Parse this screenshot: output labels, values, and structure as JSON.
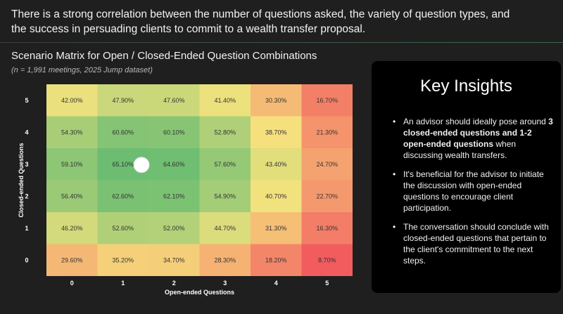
{
  "headline": "There is a strong correlation between the number of questions asked, the variety of question types, and the success in persuading clients to commit to a wealth transfer proposal.",
  "chart_title": "Scenario Matrix for Open / Closed-Ended Question Combinations",
  "chart_subtitle": "(n = 1,991 meetings, 2025 Jump dataset)",
  "chart_data": {
    "type": "heatmap",
    "title": "Scenario Matrix for Open / Closed-Ended Question Combinations",
    "xlabel": "Open-ended Questions",
    "ylabel": "Closed-ended Questions",
    "x_categories": [
      "0",
      "1",
      "2",
      "3",
      "4",
      "5"
    ],
    "y_categories": [
      "5",
      "4",
      "3",
      "2",
      "1",
      "0"
    ],
    "values": [
      [
        42.0,
        47.9,
        47.6,
        41.4,
        30.3,
        16.7
      ],
      [
        54.3,
        60.6,
        60.1,
        52.8,
        38.7,
        21.3
      ],
      [
        59.1,
        65.1,
        64.6,
        57.6,
        43.4,
        24.7
      ],
      [
        56.4,
        62.6,
        62.1,
        54.9,
        40.7,
        22.7
      ],
      [
        46.2,
        52.6,
        52.0,
        44.7,
        31.3,
        16.3
      ],
      [
        29.6,
        35.2,
        34.7,
        28.3,
        18.2,
        8.7
      ]
    ],
    "labels": [
      [
        "42.00%",
        "47.90%",
        "47.60%",
        "41.40%",
        "30.30%",
        "16.70%"
      ],
      [
        "54.30%",
        "60.60%",
        "60.10%",
        "52.80%",
        "38.70%",
        "21.30%"
      ],
      [
        "59.10%",
        "65.10%",
        "64.60%",
        "57.60%",
        "43.40%",
        "24.70%"
      ],
      [
        "56.40%",
        "62.60%",
        "62.10%",
        "54.90%",
        "40.70%",
        "22.70%"
      ],
      [
        "46.20%",
        "52.60%",
        "52.00%",
        "44.70%",
        "31.30%",
        "16.30%"
      ],
      [
        "29.60%",
        "35.20%",
        "34.70%",
        "28.30%",
        "18.20%",
        "8.70%"
      ]
    ],
    "highlight": {
      "x": "1.5",
      "y": "3"
    },
    "colorscale": {
      "low": "#f25c5f",
      "mid": "#f6e47e",
      "high": "#6cbd72"
    }
  },
  "insights": {
    "title": "Key Insights",
    "items": [
      {
        "text_before": "An advisor should ideally pose around ",
        "bold": "3 closed-ended questions and 1-2 open-ended questions",
        "text_after": " when discussing wealth transfers."
      },
      {
        "text_before": "It's beneficial for the advisor to initiate the discussion with open-ended questions to encourage client participation.",
        "bold": "",
        "text_after": ""
      },
      {
        "text_before": "The conversation should conclude with closed-ended questions that pertain to the client's commitment to the next steps.",
        "bold": "",
        "text_after": ""
      }
    ]
  }
}
